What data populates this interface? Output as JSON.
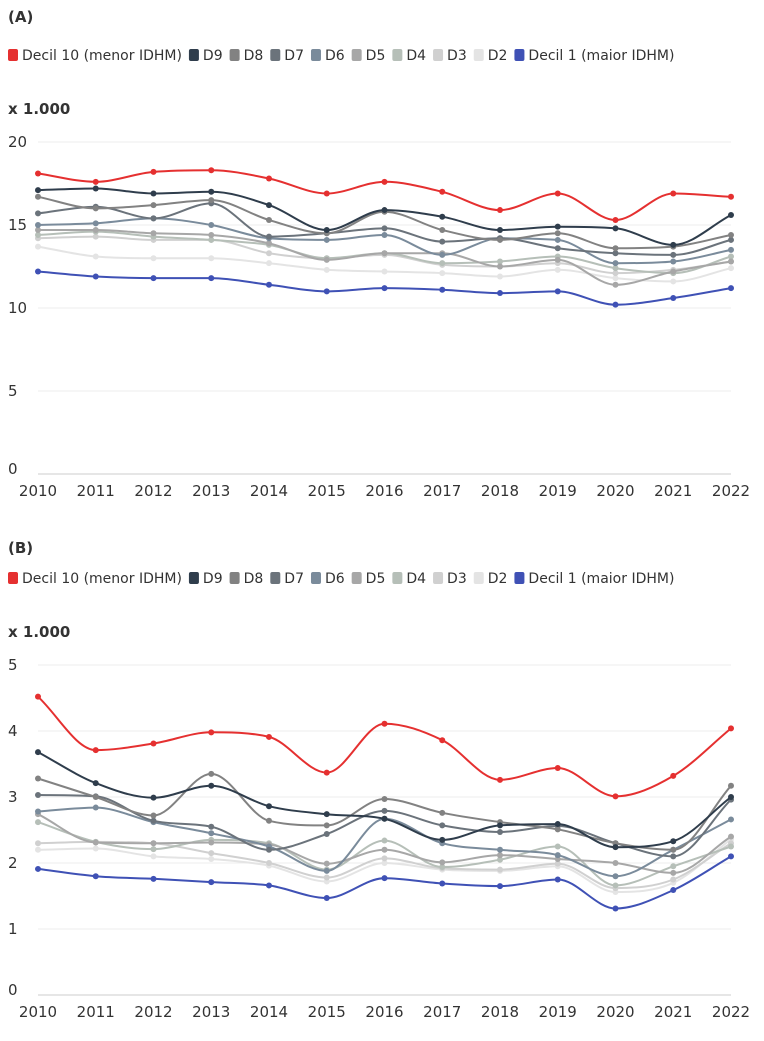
{
  "chart_data": [
    {
      "type": "line",
      "panel_label": "(A)",
      "unit_label": "x 1.000",
      "x": [
        2010,
        2011,
        2012,
        2013,
        2014,
        2015,
        2016,
        2017,
        2018,
        2019,
        2020,
        2021,
        2022
      ],
      "ylim": [
        0,
        20
      ],
      "yticks": [
        0,
        5,
        10,
        15,
        20
      ],
      "grid": true,
      "legend_position": "top",
      "series": [
        {
          "name": "Decil 10 (menor IDHM)",
          "color": "#e53030",
          "values": [
            18.1,
            17.6,
            18.2,
            18.3,
            17.8,
            16.9,
            17.6,
            17.0,
            15.9,
            16.9,
            15.3,
            16.9,
            16.7
          ]
        },
        {
          "name": "D9",
          "color": "#2f3d4c",
          "values": [
            17.1,
            17.2,
            16.9,
            17.0,
            16.2,
            14.7,
            15.9,
            15.5,
            14.7,
            14.9,
            14.8,
            13.8,
            15.6
          ]
        },
        {
          "name": "D8",
          "color": "#828282",
          "values": [
            16.7,
            16.0,
            16.2,
            16.5,
            15.3,
            14.5,
            15.8,
            14.7,
            14.1,
            14.5,
            13.6,
            13.7,
            14.4
          ]
        },
        {
          "name": "D7",
          "color": "#6b737b",
          "values": [
            15.7,
            16.1,
            15.4,
            16.3,
            14.3,
            14.5,
            14.8,
            14.0,
            14.2,
            13.6,
            13.3,
            13.2,
            14.1
          ]
        },
        {
          "name": "D6",
          "color": "#7a8b9b",
          "values": [
            15.0,
            15.1,
            15.4,
            15.0,
            14.2,
            14.1,
            14.4,
            13.2,
            14.2,
            14.1,
            12.7,
            12.8,
            13.5
          ]
        },
        {
          "name": "D5",
          "color": "#a7a7a7",
          "values": [
            14.7,
            14.7,
            14.5,
            14.4,
            13.9,
            12.9,
            13.3,
            13.3,
            12.5,
            12.9,
            11.4,
            12.2,
            12.8
          ]
        },
        {
          "name": "D4",
          "color": "#b6bfb8",
          "values": [
            14.4,
            14.6,
            14.3,
            14.1,
            13.8,
            13.0,
            13.3,
            12.7,
            12.8,
            13.1,
            12.4,
            12.1,
            13.1
          ]
        },
        {
          "name": "D3",
          "color": "#d0d0d0",
          "values": [
            14.2,
            14.3,
            14.1,
            14.1,
            13.3,
            13.0,
            13.2,
            12.6,
            12.5,
            12.7,
            12.1,
            12.3,
            12.8
          ]
        },
        {
          "name": "D2",
          "color": "#e4e4e4",
          "values": [
            13.7,
            13.1,
            13.0,
            13.0,
            12.7,
            12.3,
            12.2,
            12.1,
            11.9,
            12.3,
            11.8,
            11.6,
            12.4
          ]
        },
        {
          "name": "Decil 1 (maior IDHM)",
          "color": "#3f51b5",
          "values": [
            12.2,
            11.9,
            11.8,
            11.8,
            11.4,
            11.0,
            11.2,
            11.1,
            10.9,
            11.0,
            10.2,
            10.6,
            11.2
          ]
        }
      ]
    },
    {
      "type": "line",
      "panel_label": "(B)",
      "unit_label": "x 1.000",
      "x": [
        2010,
        2011,
        2012,
        2013,
        2014,
        2015,
        2016,
        2017,
        2018,
        2019,
        2020,
        2021,
        2022
      ],
      "ylim": [
        0,
        5
      ],
      "yticks": [
        0,
        1,
        2,
        3,
        4,
        5
      ],
      "grid": true,
      "legend_position": "top",
      "series": [
        {
          "name": "Decil 10 (menor IDHM)",
          "color": "#e53030",
          "values": [
            4.52,
            3.71,
            3.81,
            3.98,
            3.91,
            3.37,
            4.11,
            3.86,
            3.26,
            3.44,
            3.01,
            3.32,
            4.04
          ]
        },
        {
          "name": "D9",
          "color": "#2f3d4c",
          "values": [
            3.68,
            3.21,
            2.99,
            3.17,
            2.86,
            2.74,
            2.67,
            2.35,
            2.57,
            2.59,
            2.24,
            2.33,
            3.0
          ]
        },
        {
          "name": "D8",
          "color": "#828282",
          "values": [
            3.28,
            3.0,
            2.72,
            3.35,
            2.64,
            2.57,
            2.97,
            2.76,
            2.62,
            2.51,
            2.3,
            2.2,
            3.17
          ]
        },
        {
          "name": "D7",
          "color": "#6b737b",
          "values": [
            3.03,
            3.01,
            2.64,
            2.55,
            2.2,
            2.44,
            2.79,
            2.57,
            2.47,
            2.56,
            2.3,
            2.1,
            2.96
          ]
        },
        {
          "name": "D6",
          "color": "#7a8b9b",
          "values": [
            2.78,
            2.84,
            2.62,
            2.45,
            2.25,
            1.88,
            2.67,
            2.3,
            2.2,
            2.12,
            1.8,
            2.2,
            2.66
          ]
        },
        {
          "name": "D5",
          "color": "#a7a7a7",
          "values": [
            2.74,
            2.31,
            2.3,
            2.31,
            2.28,
            1.99,
            2.2,
            2.01,
            2.12,
            2.06,
            2.0,
            1.85,
            2.4
          ]
        },
        {
          "name": "D4",
          "color": "#b6bfb8",
          "values": [
            2.62,
            2.32,
            2.21,
            2.35,
            2.3,
            1.9,
            2.34,
            1.94,
            2.05,
            2.25,
            1.66,
            1.95,
            2.25
          ]
        },
        {
          "name": "D3",
          "color": "#d0d0d0",
          "values": [
            2.3,
            2.32,
            2.3,
            2.15,
            2.0,
            1.78,
            2.07,
            1.92,
            1.9,
            1.99,
            1.62,
            1.75,
            2.3
          ]
        },
        {
          "name": "D2",
          "color": "#e4e4e4",
          "values": [
            2.2,
            2.22,
            2.1,
            2.06,
            1.96,
            1.72,
            2.0,
            1.9,
            1.88,
            1.95,
            1.56,
            1.7,
            2.36
          ]
        },
        {
          "name": "Decil 1 (maior IDHM)",
          "color": "#3f51b5",
          "values": [
            1.91,
            1.8,
            1.76,
            1.71,
            1.66,
            1.47,
            1.77,
            1.69,
            1.65,
            1.75,
            1.31,
            1.59,
            2.1
          ]
        }
      ]
    }
  ]
}
